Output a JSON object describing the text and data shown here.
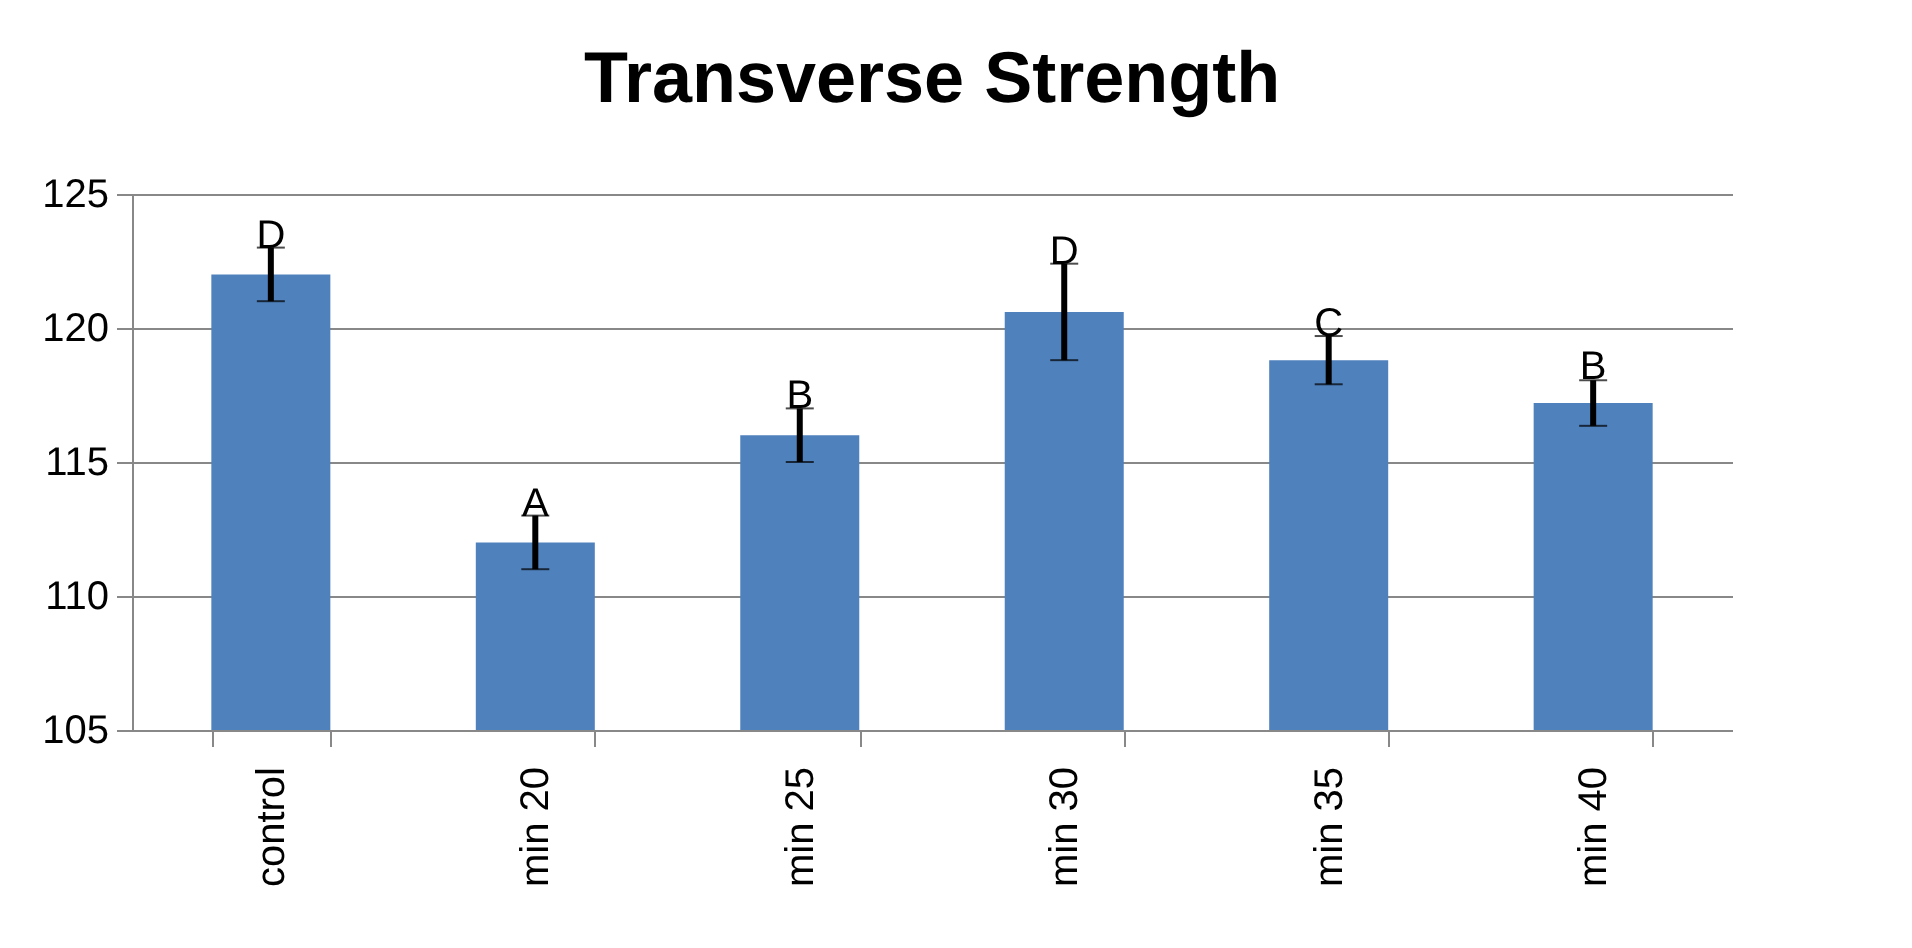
{
  "chart_data": {
    "type": "bar",
    "title": "Transverse Strength",
    "categories": [
      "control",
      "min 20",
      "min 25",
      "min 30",
      "min 35",
      "min 40"
    ],
    "series": [
      {
        "color": "#4f81bd",
        "values": [
          122,
          112,
          116,
          120.6,
          118.8,
          117.2
        ],
        "errors": [
          1,
          1,
          1,
          1.8,
          0.9,
          0.85
        ]
      }
    ],
    "ylim": [
      105,
      125
    ],
    "yticks": [
      105,
      110,
      115,
      120,
      125
    ],
    "grid": "y",
    "annotations": [
      {
        "text": "D",
        "x": "control",
        "y": 123
      },
      {
        "text": "A",
        "x": "min 20",
        "y": 113
      },
      {
        "text": "B",
        "x": "min 25",
        "y": 117
      },
      {
        "text": "D",
        "x": "min 30",
        "y": 122.4
      },
      {
        "text": "C",
        "x": "min 35",
        "y": 119.7
      },
      {
        "text": "B",
        "x": "min 40",
        "y": 118.1
      }
    ]
  }
}
